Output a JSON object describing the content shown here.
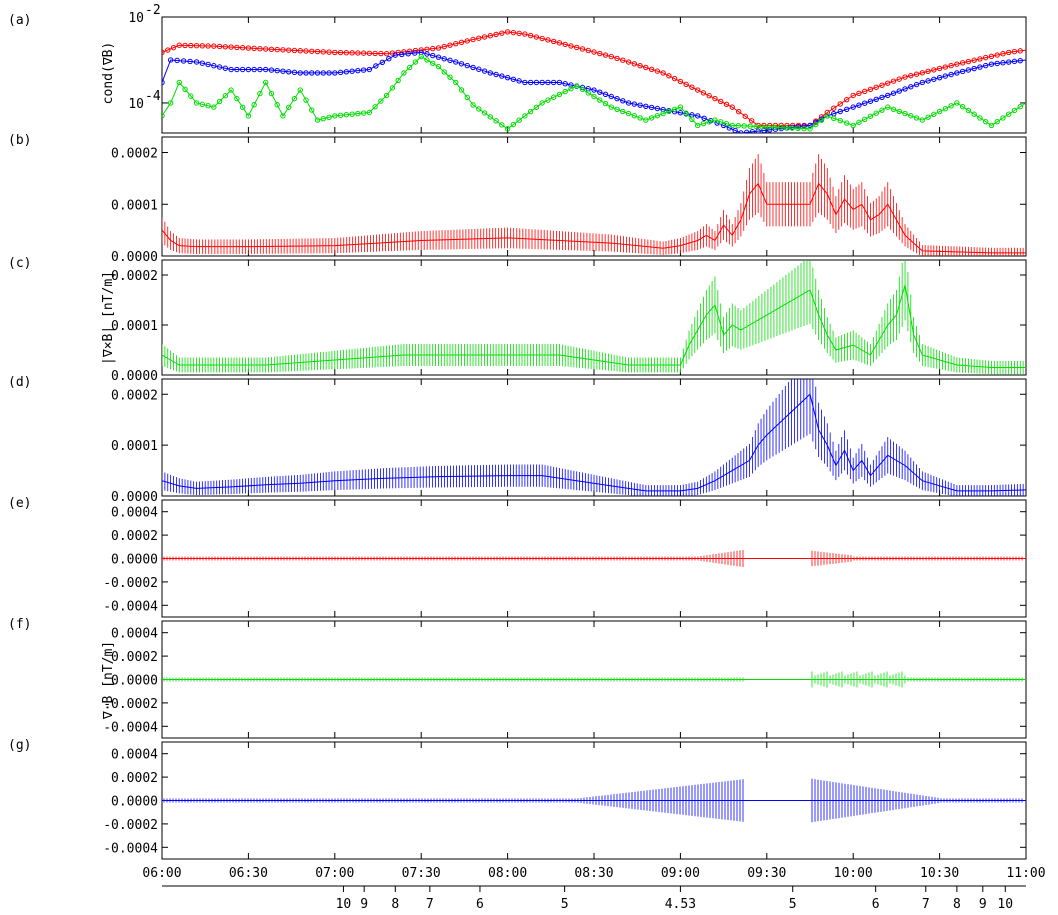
{
  "figure": {
    "panel_tags": [
      "(a)",
      "(b)",
      "(c)",
      "(d)",
      "(e)",
      "(f)",
      "(g)"
    ],
    "left_labels": {
      "cond": "cond(∇B)",
      "curl": "|∇×B| [nT/m]",
      "div": "∇·B [nT/m]"
    },
    "time_ticks": [
      "06:00",
      "06:30",
      "07:00",
      "07:30",
      "08:00",
      "08:30",
      "09:00",
      "09:30",
      "10:00",
      "10:30",
      "11:00"
    ],
    "bottom_axis_labels": [
      {
        "label": "10",
        "t": 7.05
      },
      {
        "label": "9",
        "t": 7.17
      },
      {
        "label": "8",
        "t": 7.35
      },
      {
        "label": "7",
        "t": 7.55
      },
      {
        "label": "6",
        "t": 7.84
      },
      {
        "label": "5",
        "t": 8.33
      },
      {
        "label": "4.53",
        "t": 9.0
      },
      {
        "label": "5",
        "t": 9.65
      },
      {
        "label": "6",
        "t": 10.13
      },
      {
        "label": "7",
        "t": 10.42
      },
      {
        "label": "8",
        "t": 10.6
      },
      {
        "label": "9",
        "t": 10.75
      },
      {
        "label": "10",
        "t": 10.88
      }
    ],
    "colors": {
      "red": "#ff0000",
      "green": "#00dd00",
      "blue": "#0000ff",
      "axis": "#000000"
    }
  },
  "chart_data": [
    {
      "type": "scatter",
      "panel": "(a)",
      "ylabel": "cond(∇B)",
      "yscale": "log",
      "ylim": [
        2e-05,
        0.01
      ],
      "xlim": [
        6.0,
        11.0
      ],
      "ytick_labels": [
        "10",
        "10"
      ],
      "ytick_exponents": [
        "-2",
        "-4"
      ],
      "series": [
        {
          "color": "red",
          "x": [
            6.0,
            6.1,
            6.3,
            6.6,
            7.0,
            7.3,
            7.6,
            7.8,
            8.0,
            8.1,
            8.3,
            8.6,
            8.9,
            9.1,
            9.3,
            9.45,
            9.55,
            9.75,
            9.85,
            10.0,
            10.3,
            10.6,
            10.9,
            11.0
          ],
          "y": [
            0.0015,
            0.0022,
            0.0021,
            0.0018,
            0.0015,
            0.0014,
            0.0019,
            0.003,
            0.0045,
            0.004,
            0.0025,
            0.0012,
            0.0005,
            0.0002,
            8e-05,
            3e-05,
            3e-05,
            3e-05,
            6e-05,
            0.00015,
            0.0004,
            0.0008,
            0.0015,
            0.0017
          ]
        },
        {
          "color": "blue",
          "x": [
            6.0,
            6.05,
            6.2,
            6.4,
            6.6,
            6.8,
            7.0,
            7.2,
            7.35,
            7.5,
            7.7,
            7.9,
            8.1,
            8.3,
            8.5,
            8.7,
            8.9,
            9.1,
            9.25,
            9.35,
            9.75,
            9.85,
            10.0,
            10.2,
            10.4,
            10.6,
            10.8,
            11.0
          ],
          "y": [
            0.0003,
            0.001,
            0.0009,
            0.0006,
            0.0006,
            0.0005,
            0.0005,
            0.0006,
            0.0013,
            0.0015,
            0.0009,
            0.0005,
            0.0003,
            0.0003,
            0.0002,
            0.0001,
            7e-05,
            5e-05,
            3e-05,
            2e-05,
            3e-05,
            5e-05,
            8e-05,
            0.00015,
            0.0003,
            0.0005,
            0.0008,
            0.001
          ]
        },
        {
          "color": "green",
          "x": [
            6.0,
            6.05,
            6.1,
            6.2,
            6.3,
            6.4,
            6.5,
            6.6,
            6.7,
            6.8,
            6.9,
            7.0,
            7.2,
            7.3,
            7.4,
            7.5,
            7.6,
            7.7,
            7.8,
            8.0,
            8.2,
            8.4,
            8.6,
            8.8,
            9.0,
            9.1,
            9.2,
            9.3,
            9.75,
            9.85,
            10.0,
            10.2,
            10.4,
            10.6,
            10.8,
            11.0
          ],
          "y": [
            5e-05,
            0.0001,
            0.0003,
            0.0001,
            8e-05,
            0.0002,
            5e-05,
            0.0003,
            5e-05,
            0.0002,
            4e-05,
            5e-05,
            6e-05,
            0.00015,
            0.0005,
            0.0012,
            0.0007,
            0.0003,
            9e-05,
            2.5e-05,
            0.0001,
            0.00025,
            8e-05,
            4e-05,
            8e-05,
            3e-05,
            4e-05,
            3e-05,
            2.5e-05,
            5e-05,
            3e-05,
            8e-05,
            4e-05,
            0.0001,
            3e-05,
            0.0001
          ]
        }
      ]
    },
    {
      "type": "line",
      "panel": "(b)",
      "ylabel": "|∇×B| [nT/m]",
      "ylim": [
        0,
        0.00023
      ],
      "ytick_labels": [
        "0.0000",
        "0.0001",
        "0.0002"
      ],
      "series": [
        {
          "color": "red",
          "x": [
            6.0,
            6.05,
            6.1,
            6.2,
            6.5,
            7.0,
            7.5,
            8.0,
            8.3,
            8.6,
            8.9,
            9.0,
            9.1,
            9.15,
            9.2,
            9.25,
            9.3,
            9.35,
            9.4,
            9.45,
            9.5,
            9.75,
            9.8,
            9.85,
            9.9,
            9.95,
            10.0,
            10.05,
            10.1,
            10.15,
            10.2,
            10.25,
            10.3,
            10.4,
            10.6,
            10.8,
            11.0
          ],
          "y": [
            5e-05,
            3e-05,
            2e-05,
            1.8e-05,
            1.8e-05,
            2e-05,
            3e-05,
            3.5e-05,
            3e-05,
            2.5e-05,
            1.5e-05,
            2e-05,
            3e-05,
            4e-05,
            3e-05,
            6e-05,
            4e-05,
            7e-05,
            0.00012,
            0.00014,
            0.0001,
            0.0001,
            0.00014,
            0.00012,
            8e-05,
            0.00011,
            9e-05,
            0.0001,
            7e-05,
            8e-05,
            0.0001,
            7e-05,
            4e-05,
            1e-05,
            8e-06,
            6e-06,
            6e-06
          ]
        }
      ]
    },
    {
      "type": "line",
      "panel": "(c)",
      "ylabel": "|∇×B| [nT/m]",
      "ylim": [
        0,
        0.00023
      ],
      "ytick_labels": [
        "0.0000",
        "0.0001",
        "0.0002"
      ],
      "series": [
        {
          "color": "green",
          "x": [
            6.0,
            6.05,
            6.1,
            6.2,
            6.4,
            6.6,
            6.8,
            7.0,
            7.2,
            7.4,
            7.6,
            7.8,
            8.0,
            8.1,
            8.3,
            8.5,
            8.7,
            8.9,
            9.0,
            9.05,
            9.1,
            9.15,
            9.2,
            9.25,
            9.3,
            9.35,
            9.75,
            9.8,
            9.85,
            9.9,
            10.0,
            10.1,
            10.2,
            10.25,
            10.3,
            10.35,
            10.4,
            10.6,
            10.8,
            11.0
          ],
          "y": [
            4e-05,
            3e-05,
            2e-05,
            2e-05,
            2e-05,
            2e-05,
            2.5e-05,
            3e-05,
            3.5e-05,
            4e-05,
            4e-05,
            4e-05,
            4e-05,
            4e-05,
            4e-05,
            3e-05,
            2e-05,
            2e-05,
            2e-05,
            6e-05,
            9e-05,
            0.00012,
            0.00014,
            8e-05,
            0.0001,
            9e-05,
            0.00017,
            0.00012,
            8e-05,
            5e-05,
            6e-05,
            4e-05,
            0.0001,
            0.00012,
            0.00018,
            8e-05,
            4e-05,
            2e-05,
            1.5e-05,
            1.5e-05
          ]
        }
      ]
    },
    {
      "type": "line",
      "panel": "(d)",
      "ylabel": "|∇×B| [nT/m]",
      "ylim": [
        0,
        0.00023
      ],
      "ytick_labels": [
        "0.0000",
        "0.0001",
        "0.0002"
      ],
      "series": [
        {
          "color": "blue",
          "x": [
            6.0,
            6.1,
            6.2,
            6.4,
            6.6,
            6.8,
            7.0,
            7.3,
            7.6,
            8.0,
            8.2,
            8.4,
            8.6,
            8.8,
            9.0,
            9.1,
            9.2,
            9.3,
            9.4,
            9.45,
            9.5,
            9.75,
            9.8,
            9.85,
            9.9,
            9.95,
            10.0,
            10.05,
            10.1,
            10.2,
            10.3,
            10.4,
            10.5,
            10.6,
            10.8,
            11.0
          ],
          "y": [
            3e-05,
            2e-05,
            1.5e-05,
            1.8e-05,
            2.2e-05,
            2.5e-05,
            3e-05,
            3.5e-05,
            3.8e-05,
            4e-05,
            4e-05,
            3e-05,
            2e-05,
            1e-05,
            1e-05,
            1.5e-05,
            3e-05,
            5e-05,
            7e-05,
            0.0001,
            0.00012,
            0.0002,
            0.00013,
            0.0001,
            6e-05,
            9e-05,
            5e-05,
            7e-05,
            4e-05,
            8e-05,
            6e-05,
            3e-05,
            2e-05,
            1e-05,
            1e-05,
            1.2e-05
          ]
        }
      ]
    },
    {
      "type": "line",
      "panel": "(e)",
      "ylabel": "∇·B [nT/m]",
      "ylim": [
        -0.0005,
        0.0005
      ],
      "ytick_labels": [
        "-0.0004",
        "-0.0002",
        "0.0000",
        "0.0002",
        "0.0004"
      ],
      "series": [
        {
          "color": "red",
          "x": [
            6.0,
            11.0
          ],
          "y": [
            0.0,
            0.0
          ]
        }
      ]
    },
    {
      "type": "line",
      "panel": "(f)",
      "ylabel": "∇·B [nT/m]",
      "ylim": [
        -0.0005,
        0.0005
      ],
      "ytick_labels": [
        "-0.0004",
        "-0.0002",
        "0.0000",
        "0.0002",
        "0.0004"
      ],
      "series": [
        {
          "color": "green",
          "x": [
            6.0,
            11.0
          ],
          "y": [
            0.0,
            0.0
          ]
        }
      ]
    },
    {
      "type": "line",
      "panel": "(g)",
      "ylabel": "∇·B [nT/m]",
      "ylim": [
        -0.0005,
        0.0005
      ],
      "ytick_labels": [
        "-0.0004",
        "-0.0002",
        "0.0000",
        "0.0002",
        "0.0004"
      ],
      "series": [
        {
          "color": "blue",
          "x": [
            6.0,
            11.0
          ],
          "y": [
            0.0,
            0.0
          ]
        }
      ]
    }
  ]
}
